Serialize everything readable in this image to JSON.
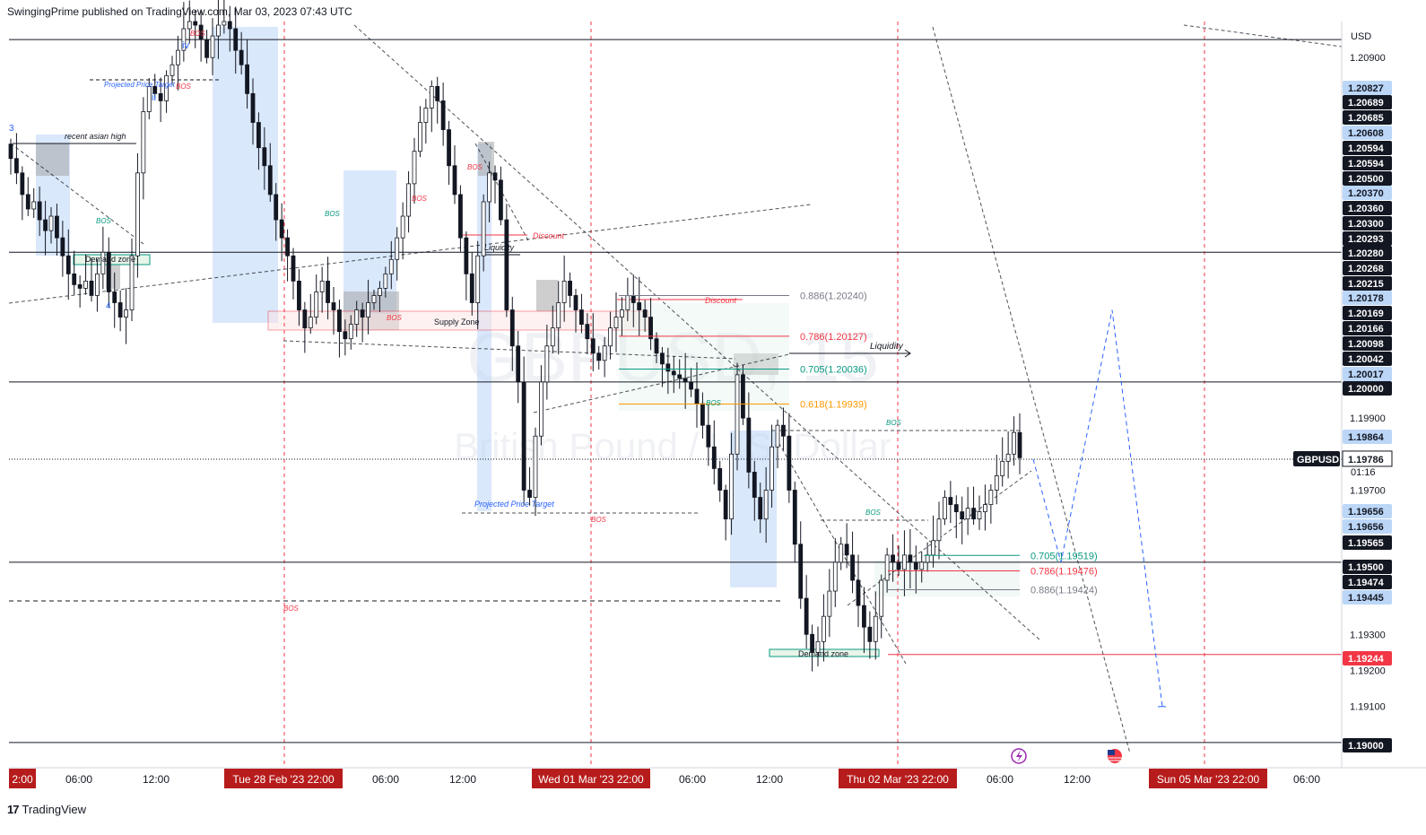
{
  "header": {
    "published_text": "SwingingPrime published on TradingView.com, Mar 03, 2023 07:43 UTC"
  },
  "footer": {
    "logo_glyph": "17",
    "brand": "TradingView"
  },
  "watermark": {
    "symbol": "GBPUSD, 15",
    "name": "British Pound / U.S. Dollar"
  },
  "chart_data": {
    "type": "candlestick",
    "symbol": "GBPUSD",
    "timeframe": "15",
    "currency": "USD",
    "ylim": [
      1.1893,
      1.21
    ],
    "price_axis_ticks": [
      "1.20900",
      "1.19900",
      "1.19700",
      "1.19300",
      "1.19200",
      "1.19100"
    ],
    "price_badges": [
      {
        "label": "1.20827",
        "style": "blue"
      },
      {
        "label": "1.20689",
        "style": "black"
      },
      {
        "label": "1.20685",
        "style": "black"
      },
      {
        "label": "1.20608",
        "style": "blue"
      },
      {
        "label": "1.20594",
        "style": "black"
      },
      {
        "label": "1.20594",
        "style": "black"
      },
      {
        "label": "1.20500",
        "style": "black"
      },
      {
        "label": "1.20370",
        "style": "blue"
      },
      {
        "label": "1.20360",
        "style": "black"
      },
      {
        "label": "1.20300",
        "style": "black"
      },
      {
        "label": "1.20293",
        "style": "black"
      },
      {
        "label": "1.20280",
        "style": "black"
      },
      {
        "label": "1.20268",
        "style": "black"
      },
      {
        "label": "1.20215",
        "style": "black"
      },
      {
        "label": "1.20178",
        "style": "blue"
      },
      {
        "label": "1.20169",
        "style": "black"
      },
      {
        "label": "1.20166",
        "style": "black"
      },
      {
        "label": "1.20098",
        "style": "black"
      },
      {
        "label": "1.20042",
        "style": "black"
      },
      {
        "label": "1.20017",
        "style": "blue"
      },
      {
        "label": "1.20000",
        "style": "black"
      },
      {
        "label": "1.19864",
        "style": "blue"
      },
      {
        "label": "1.19656",
        "style": "blue"
      },
      {
        "label": "1.19656",
        "style": "blue"
      },
      {
        "label": "1.19565",
        "style": "black"
      },
      {
        "label": "1.19500",
        "style": "black"
      },
      {
        "label": "1.19474",
        "style": "black"
      },
      {
        "label": "1.19445",
        "style": "blue"
      },
      {
        "label": "1.19244",
        "style": "red"
      },
      {
        "label": "1.19000",
        "style": "black"
      }
    ],
    "current_price": {
      "symbol_label": "GBPUSD",
      "price": "1.19786",
      "countdown": "01:16"
    },
    "time_axis": [
      {
        "label": "2:00",
        "highlight": true
      },
      {
        "label": "06:00"
      },
      {
        "label": "12:00"
      },
      {
        "label": "Tue 28 Feb '23   22:00",
        "highlight": true
      },
      {
        "label": "06:00"
      },
      {
        "label": "12:00"
      },
      {
        "label": "Wed 01 Mar '23   22:00",
        "highlight": true
      },
      {
        "label": "06:00"
      },
      {
        "label": "12:00"
      },
      {
        "label": "Thu 02 Mar '23   22:00",
        "highlight": true
      },
      {
        "label": "06:00"
      },
      {
        "label": "12:00"
      },
      {
        "label": "Sun 05 Mar '23   22:00",
        "highlight": true
      },
      {
        "label": "06:00"
      }
    ],
    "horizontal_levels": [
      1.2095,
      1.2036,
      1.2,
      1.195,
      1.19
    ],
    "fib_levels": [
      {
        "label": "0.886(1.20240)",
        "price": 1.2024,
        "color": "#787b86"
      },
      {
        "label": "0.786(1.20127)",
        "price": 1.20127,
        "color": "#f23645"
      },
      {
        "label": "0.705(1.20036)",
        "price": 1.20036,
        "color": "#089981"
      },
      {
        "label": "0.618(1.19939)",
        "price": 1.19939,
        "color": "#ff9800"
      },
      {
        "label": "0.705(1.19519)",
        "price": 1.19519,
        "color": "#089981"
      },
      {
        "label": "0.786(1.19476)",
        "price": 1.19476,
        "color": "#f23645"
      },
      {
        "label": "0.886(1.19424)",
        "price": 1.19424,
        "color": "#787b86"
      }
    ],
    "annotations": [
      {
        "text": "recent asian high"
      },
      {
        "text": "Projected Price Target"
      },
      {
        "text": "Demand zone"
      },
      {
        "text": "Supply Zone"
      },
      {
        "text": "Liquidity"
      },
      {
        "text": "Discount"
      },
      {
        "text": "Projected Price Target"
      },
      {
        "text": "Discount"
      },
      {
        "text": "Liquidity"
      },
      {
        "text": "Demand zone"
      },
      {
        "text": "BOS"
      },
      {
        "text": "BOS"
      },
      {
        "text": "BOS"
      },
      {
        "text": "BOS"
      },
      {
        "text": "BOS"
      },
      {
        "text": "BOS"
      },
      {
        "text": "BOS"
      },
      {
        "text": "BOS"
      },
      {
        "text": "BOS"
      },
      {
        "text": "BOS"
      },
      {
        "text": "BOS"
      },
      {
        "text": "BOS"
      },
      {
        "text": "iv"
      },
      {
        "text": "ii"
      },
      {
        "text": "3"
      },
      {
        "text": "4"
      }
    ],
    "candles_close": [
      1.2062,
      1.2058,
      1.2052,
      1.2048,
      1.205,
      1.2045,
      1.2042,
      1.2046,
      1.204,
      1.2035,
      1.203,
      1.2027,
      1.2026,
      1.2028,
      1.2024,
      1.203,
      1.2036,
      1.2025,
      1.2022,
      1.2018,
      1.202,
      1.2035,
      1.2058,
      1.2075,
      1.2082,
      1.208,
      1.2078,
      1.2085,
      1.2088,
      1.2092,
      1.2098,
      1.21,
      1.2099,
      1.2095,
      1.209,
      1.2096,
      1.2099,
      1.21,
      1.2098,
      1.2092,
      1.2088,
      1.208,
      1.2072,
      1.2065,
      1.206,
      1.2052,
      1.2045,
      1.204,
      1.2035,
      1.2028,
      1.202,
      1.2015,
      1.2018,
      1.2025,
      1.2028,
      1.2022,
      1.202,
      1.2014,
      1.2012,
      1.2016,
      1.202,
      1.2018,
      1.2022,
      1.2024,
      1.2026,
      1.203,
      1.2034,
      1.204,
      1.2046,
      1.2055,
      1.2064,
      1.2072,
      1.2076,
      1.2082,
      1.2078,
      1.207,
      1.206,
      1.2052,
      1.204,
      1.203,
      1.2022,
      1.2035,
      1.205,
      1.2058,
      1.2056,
      1.2045,
      1.202,
      1.201,
      1.2,
      1.197,
      1.1968,
      1.1985,
      1.2,
      1.201,
      1.2015,
      1.2022,
      1.2028,
      1.2024,
      1.202,
      1.2016,
      1.2012,
      1.2008,
      1.2006,
      1.201,
      1.2015,
      1.2018,
      1.202,
      1.2024,
      1.2022,
      1.202,
      1.2018,
      1.2012,
      1.2008,
      1.2005,
      1.2003,
      1.2002,
      1.2001,
      1.2,
      1.1998,
      1.1994,
      1.1988,
      1.1982,
      1.1976,
      1.197,
      1.1962,
      1.198,
      1.2002,
      1.199,
      1.1975,
      1.1968,
      1.1962,
      1.197,
      1.1982,
      1.1988,
      1.1985,
      1.197,
      1.1955,
      1.194,
      1.193,
      1.1925,
      1.1928,
      1.1935,
      1.1942,
      1.195,
      1.1955,
      1.1952,
      1.1945,
      1.1938,
      1.1932,
      1.1928,
      1.1935,
      1.1945,
      1.1952,
      1.195,
      1.1948,
      1.1952,
      1.195,
      1.1948,
      1.195,
      1.1952,
      1.1956,
      1.1962,
      1.1968,
      1.1966,
      1.1964,
      1.1962,
      1.1965,
      1.1962,
      1.1964,
      1.1966,
      1.197,
      1.1974,
      1.1978,
      1.198,
      1.1986,
      1.1979
    ],
    "projection_path": [
      1.19786,
      1.195,
      1.202,
      1.191
    ]
  }
}
